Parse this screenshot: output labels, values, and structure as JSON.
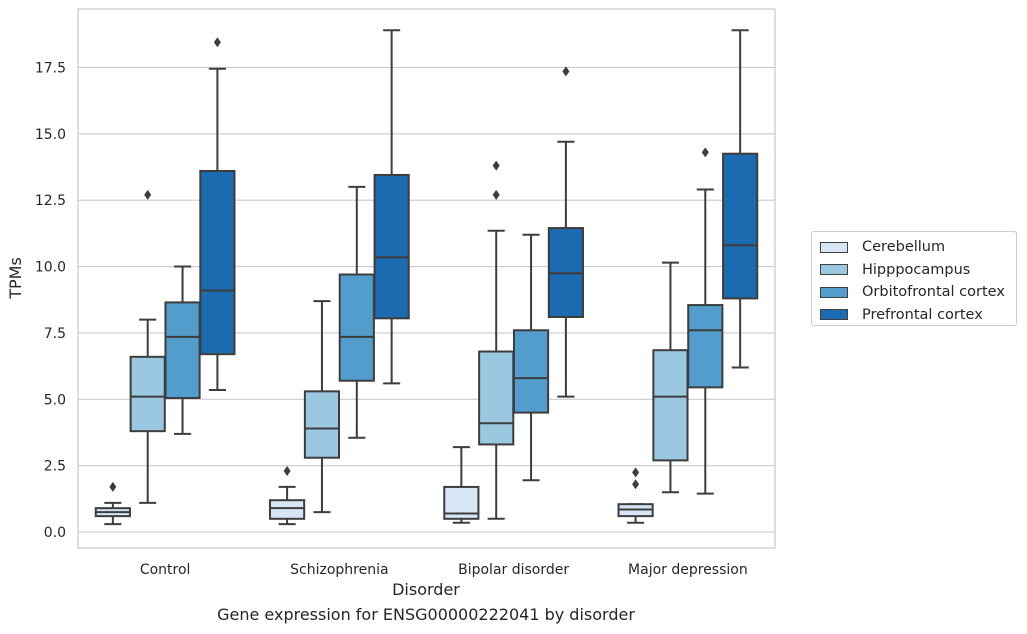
{
  "caption": "Gene expression for ENSG00000222041 by disorder",
  "chart_data": {
    "type": "boxplot",
    "xlabel": "Disorder",
    "ylabel": "TPMs",
    "ylim": [
      -0.6,
      19.7
    ],
    "yticks": [
      "0.0",
      "2.5",
      "5.0",
      "7.5",
      "10.0",
      "12.5",
      "15.0",
      "17.5"
    ],
    "grid": "horizontal",
    "legend_position": "right",
    "categories": [
      "Control",
      "Schizophrenia",
      "Bipolar disorder",
      "Major depression"
    ],
    "series": [
      {
        "name": "Cerebellum",
        "color": "#d6e6f4",
        "boxes": [
          {
            "whislo": 0.3,
            "q1": 0.6,
            "med": 0.75,
            "q3": 0.9,
            "whishi": 1.1,
            "fliers": [
              1.7
            ]
          },
          {
            "whislo": 0.3,
            "q1": 0.5,
            "med": 0.9,
            "q3": 1.2,
            "whishi": 1.7,
            "fliers": [
              2.3
            ]
          },
          {
            "whislo": 0.35,
            "q1": 0.5,
            "med": 0.7,
            "q3": 1.7,
            "whishi": 3.2,
            "fliers": []
          },
          {
            "whislo": 0.35,
            "q1": 0.6,
            "med": 0.85,
            "q3": 1.05,
            "whishi": 1.05,
            "fliers": [
              1.8,
              2.25
            ]
          }
        ]
      },
      {
        "name": "Hipppocampus",
        "color": "#9ac8e0",
        "boxes": [
          {
            "whislo": 1.1,
            "q1": 3.8,
            "med": 5.1,
            "q3": 6.6,
            "whishi": 8.0,
            "fliers": [
              12.7
            ]
          },
          {
            "whislo": 0.75,
            "q1": 2.8,
            "med": 3.9,
            "q3": 5.3,
            "whishi": 8.7,
            "fliers": []
          },
          {
            "whislo": 0.5,
            "q1": 3.3,
            "med": 4.1,
            "q3": 6.8,
            "whishi": 11.35,
            "fliers": [
              12.7,
              13.8
            ]
          },
          {
            "whislo": 1.5,
            "q1": 2.7,
            "med": 5.1,
            "q3": 6.85,
            "whishi": 10.15,
            "fliers": []
          }
        ]
      },
      {
        "name": "Orbitofrontal cortex",
        "color": "#529dcc",
        "boxes": [
          {
            "whislo": 3.7,
            "q1": 5.05,
            "med": 7.35,
            "q3": 8.65,
            "whishi": 10.0,
            "fliers": []
          },
          {
            "whislo": 3.55,
            "q1": 5.7,
            "med": 7.35,
            "q3": 9.7,
            "whishi": 13.0,
            "fliers": []
          },
          {
            "whislo": 1.95,
            "q1": 4.5,
            "med": 5.8,
            "q3": 7.6,
            "whishi": 11.2,
            "fliers": []
          },
          {
            "whislo": 1.45,
            "q1": 5.45,
            "med": 7.6,
            "q3": 8.55,
            "whishi": 12.9,
            "fliers": [
              14.3
            ]
          }
        ]
      },
      {
        "name": "Prefrontal cortex",
        "color": "#1c6aaf",
        "boxes": [
          {
            "whislo": 5.35,
            "q1": 6.7,
            "med": 9.1,
            "q3": 13.6,
            "whishi": 17.45,
            "fliers": [
              18.45
            ]
          },
          {
            "whislo": 5.6,
            "q1": 8.05,
            "med": 10.35,
            "q3": 13.45,
            "whishi": 18.9,
            "fliers": []
          },
          {
            "whislo": 5.1,
            "q1": 8.1,
            "med": 9.75,
            "q3": 11.45,
            "whishi": 14.7,
            "fliers": [
              17.35
            ]
          },
          {
            "whislo": 6.2,
            "q1": 8.8,
            "med": 10.8,
            "q3": 14.25,
            "whishi": 18.9,
            "fliers": []
          }
        ]
      }
    ]
  }
}
